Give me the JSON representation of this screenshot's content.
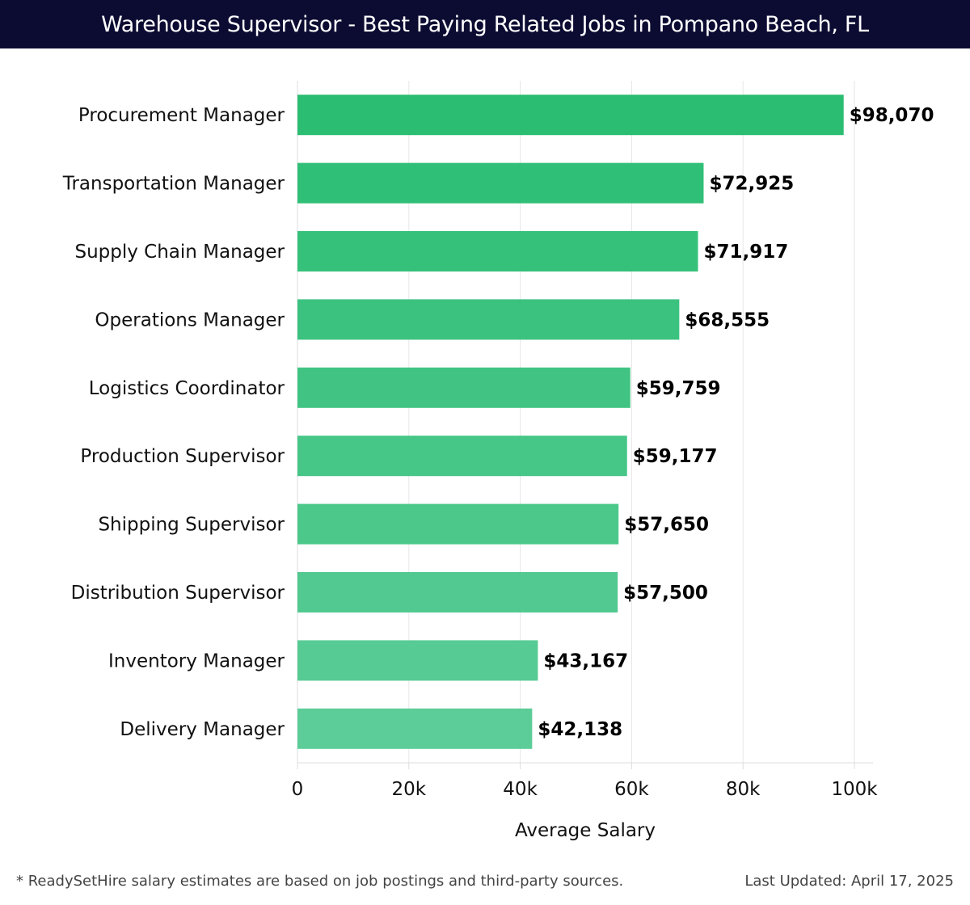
{
  "chart_data": {
    "type": "bar",
    "orientation": "horizontal",
    "title": "Warehouse Supervisor - Best Paying Related Jobs in Pompano Beach, FL",
    "categories": [
      "Procurement Manager",
      "Transportation Manager",
      "Supply Chain Manager",
      "Operations Manager",
      "Logistics Coordinator",
      "Production Supervisor",
      "Shipping Supervisor",
      "Distribution Supervisor",
      "Inventory Manager",
      "Delivery Manager"
    ],
    "values": [
      98070,
      72925,
      71917,
      68555,
      59759,
      59177,
      57650,
      57500,
      43167,
      42138
    ],
    "value_labels": [
      "$98,070",
      "$72,925",
      "$71,917",
      "$68,555",
      "$59,759",
      "$59,177",
      "$57,650",
      "$57,500",
      "$43,167",
      "$42,138"
    ],
    "xlabel": "Average Salary",
    "ylabel": "",
    "xlim": [
      0,
      103000
    ],
    "xticks": [
      0,
      20000,
      40000,
      60000,
      80000,
      100000
    ],
    "xtick_labels": [
      "0",
      "20k",
      "40k",
      "60k",
      "80k",
      "100k"
    ],
    "grid": true,
    "bar_color_top": "#2bbd72",
    "bar_color_bottom": "#5ccd98"
  },
  "footer": {
    "note": "* ReadySetHire salary estimates are based on job postings and third-party sources.",
    "updated": "Last Updated: April 17, 2025"
  }
}
